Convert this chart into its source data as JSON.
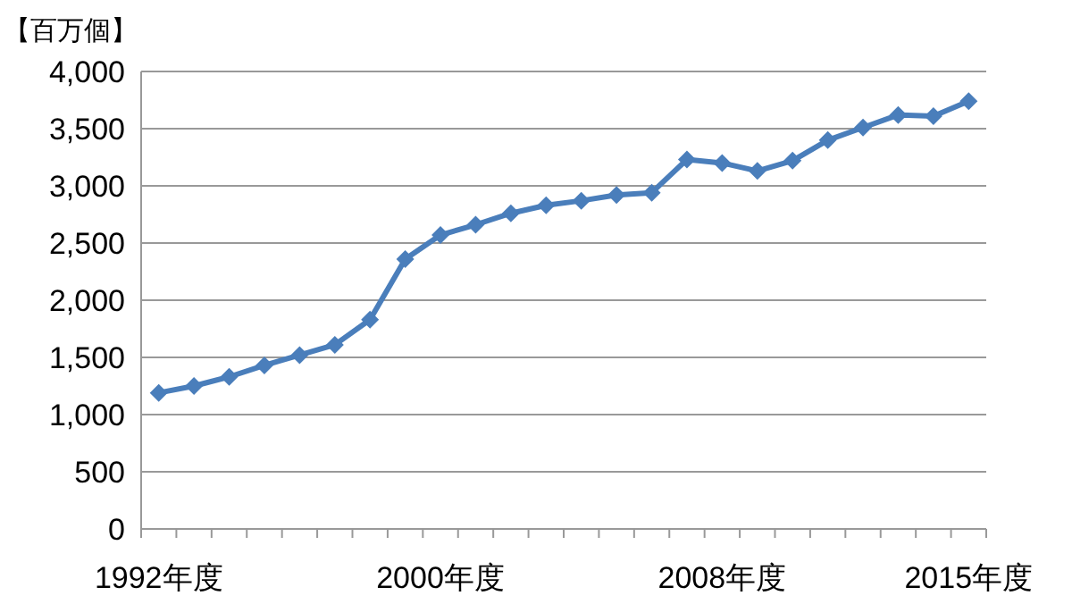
{
  "chart_data": {
    "type": "line",
    "ylabel": "【百万個】",
    "categories": [
      "1992年度",
      null,
      null,
      null,
      null,
      null,
      null,
      null,
      "2000年度",
      null,
      null,
      null,
      null,
      null,
      null,
      null,
      "2008年度",
      null,
      null,
      null,
      null,
      null,
      null,
      "2015年度"
    ],
    "values": [
      1190,
      1250,
      1330,
      1430,
      1520,
      1610,
      1830,
      2360,
      2570,
      2660,
      2760,
      2830,
      2870,
      2920,
      2940,
      3230,
      3200,
      3130,
      3220,
      3400,
      3510,
      3620,
      3610,
      3740
    ],
    "color": "#4a7ebb",
    "ylim": [
      0,
      4000
    ],
    "yticks": [
      {
        "value": 0,
        "label": "0"
      },
      {
        "value": 500,
        "label": "500"
      },
      {
        "value": 1000,
        "label": "1,000"
      },
      {
        "value": 1500,
        "label": "1,500"
      },
      {
        "value": 2000,
        "label": "2,000"
      },
      {
        "value": 2500,
        "label": "2,500"
      },
      {
        "value": 3000,
        "label": "3,000"
      },
      {
        "value": 3500,
        "label": "3,500"
      },
      {
        "value": 4000,
        "label": "4,000"
      }
    ],
    "grid": "y",
    "marker": "diamond",
    "line_style": "solid"
  }
}
